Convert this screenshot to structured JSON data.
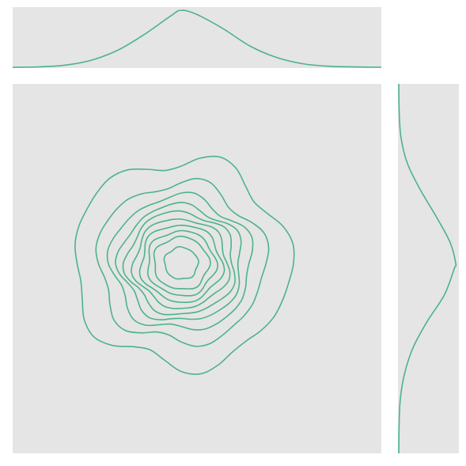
{
  "chart_data": {
    "type": "jointplot-kde",
    "title": "",
    "xlabel": "",
    "ylabel": "",
    "grid": false,
    "colors": {
      "line": "#4db38a",
      "panel_background": "#e5e5e5",
      "figure_background": "#ffffff"
    },
    "xlim": [
      -3.5,
      3.5
    ],
    "ylim": [
      -3.5,
      3.5
    ],
    "joint": {
      "kind": "contour",
      "center": [
        -0.3,
        0.1
      ],
      "contour_levels": 10,
      "contour_radii": [
        0.31,
        0.51,
        0.63,
        0.75,
        0.87,
        1.0,
        1.13,
        1.3,
        1.55,
        2.0
      ]
    },
    "marginal_x": {
      "kind": "density",
      "x": [
        -3.5,
        -3.0,
        -2.5,
        -2.0,
        -1.5,
        -1.0,
        -0.5,
        -0.3,
        0.0,
        0.5,
        1.0,
        1.5,
        2.0,
        2.5,
        3.0,
        3.5
      ],
      "density": [
        0.0,
        0.003,
        0.015,
        0.05,
        0.12,
        0.23,
        0.36,
        0.4,
        0.37,
        0.27,
        0.15,
        0.07,
        0.025,
        0.007,
        0.002,
        0.0
      ]
    },
    "marginal_y": {
      "kind": "density",
      "y": [
        -3.5,
        -3.0,
        -2.5,
        -2.0,
        -1.5,
        -1.0,
        -0.5,
        0.0,
        0.1,
        0.5,
        1.0,
        1.5,
        2.0,
        2.5,
        3.0,
        3.5
      ],
      "density": [
        0.0,
        0.002,
        0.01,
        0.04,
        0.1,
        0.2,
        0.32,
        0.39,
        0.4,
        0.36,
        0.26,
        0.15,
        0.06,
        0.015,
        0.003,
        0.0
      ]
    }
  }
}
